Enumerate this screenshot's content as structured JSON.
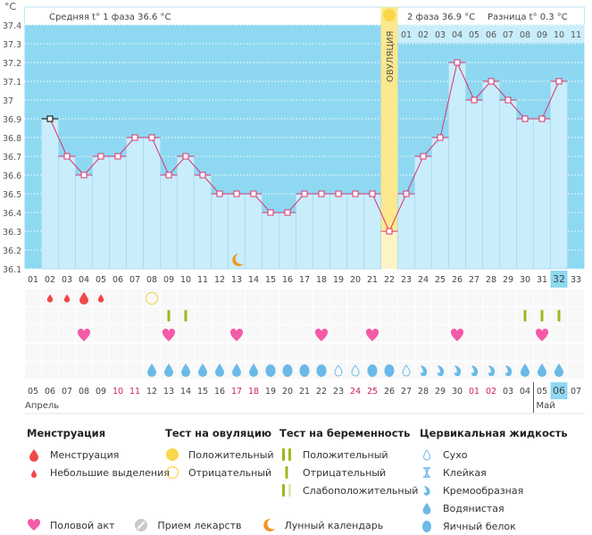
{
  "header": {
    "unit": "°C",
    "phase1": "Средняя t° 1 фаза 36.6 °C",
    "phase2": "2 фаза 36.9 °C",
    "difference": "Разница t° 0.3 °C",
    "ovulation_label": "ОВУЛЯЦИЯ",
    "next_dates": [
      "01",
      "02",
      "03",
      "04",
      "05",
      "06",
      "07",
      "08",
      "09",
      "10",
      "11"
    ]
  },
  "colors": {
    "background": "#8ed8f2",
    "bar": "#c9edfb",
    "line": "#d9346f",
    "ovulation": "#fbe88f",
    "menstruation": "#f04848",
    "heart": "#f45aa8",
    "fluid": "#6bb9e8",
    "test": "#9aba1e",
    "today": "#8ed8f2"
  },
  "chart_data": {
    "type": "line",
    "ylabel": "°C",
    "ylim": [
      36.1,
      37.4
    ],
    "yticks": [
      "37.4",
      "37.3",
      "37.2",
      "37.1",
      "37",
      "36.9",
      "36.8",
      "36.7",
      "36.6",
      "36.5",
      "36.4",
      "36.3",
      "36.2",
      "36.1"
    ],
    "cycle_days": [
      "01",
      "02",
      "03",
      "04",
      "05",
      "06",
      "07",
      "08",
      "09",
      "10",
      "11",
      "12",
      "13",
      "14",
      "15",
      "16",
      "17",
      "18",
      "19",
      "20",
      "21",
      "22",
      "23",
      "24",
      "25",
      "26",
      "27",
      "28",
      "29",
      "30",
      "31",
      "32",
      "33"
    ],
    "temperatures": [
      null,
      36.9,
      36.7,
      36.6,
      36.7,
      36.7,
      36.8,
      36.8,
      36.6,
      36.7,
      36.6,
      36.5,
      36.5,
      36.5,
      36.4,
      36.4,
      36.5,
      36.5,
      36.5,
      36.5,
      36.5,
      36.3,
      36.5,
      36.7,
      36.8,
      37.2,
      37.0,
      37.1,
      37.0,
      36.9,
      36.9,
      37.1,
      null
    ],
    "ovulation_day": 22,
    "current_day": 32,
    "moon_day": 13,
    "grid": true
  },
  "markers": {
    "menstruation": {
      "2": "small",
      "3": "small",
      "4": "full",
      "5": "small"
    },
    "ovulation_test": {
      "8": "negative"
    },
    "pregnancy_test": {
      "9": "negative",
      "10": "negative",
      "30": "negative",
      "31": "negative",
      "32": "negative"
    },
    "intercourse": [
      4,
      9,
      13,
      18,
      21,
      26,
      31
    ],
    "cervical_fluid": {
      "8": "watery",
      "9": "watery",
      "10": "watery",
      "11": "watery",
      "12": "watery",
      "13": "watery",
      "14": "watery",
      "15": "egg_white",
      "16": "egg_white",
      "17": "egg_white",
      "18": "egg_white",
      "19": "dry",
      "20": "dry",
      "21": "egg_white",
      "22": "egg_white",
      "23": "dry",
      "24": "creamy",
      "25": "creamy",
      "26": "creamy",
      "27": "creamy",
      "28": "creamy",
      "29": "creamy",
      "30": "watery",
      "31": "watery",
      "32": "watery"
    }
  },
  "dates": {
    "values": [
      "05",
      "06",
      "07",
      "08",
      "09",
      "10",
      "11",
      "12",
      "13",
      "14",
      "15",
      "16",
      "17",
      "18",
      "19",
      "20",
      "21",
      "22",
      "23",
      "24",
      "25",
      "26",
      "27",
      "28",
      "29",
      "30",
      "01",
      "02",
      "03",
      "04",
      "05",
      "06",
      "07"
    ],
    "weekend": [
      "10",
      "11",
      "17",
      "18",
      "24",
      "25",
      "01",
      "02"
    ],
    "months": [
      "Апрель",
      "Май"
    ]
  },
  "legend": {
    "menstruation": {
      "title": "Менструация",
      "items": [
        "Менструация",
        "Небольшие выделения"
      ]
    },
    "ovulation_test": {
      "title": "Тест на овуляцию",
      "items": [
        "Положительный",
        "Отрицательный"
      ]
    },
    "pregnancy_test": {
      "title": "Тест на беременность",
      "items": [
        "Положительный",
        "Отрицательный",
        "Слабоположительный"
      ]
    },
    "cervical_fluid": {
      "title": "Цервикальная жидкость",
      "items": [
        "Сухо",
        "Клейкая",
        "Кремообразная",
        "Водянистая",
        "Яичный белок"
      ]
    },
    "other": [
      "Половой акт",
      "Прием лекарств",
      "Лунный календарь"
    ]
  }
}
